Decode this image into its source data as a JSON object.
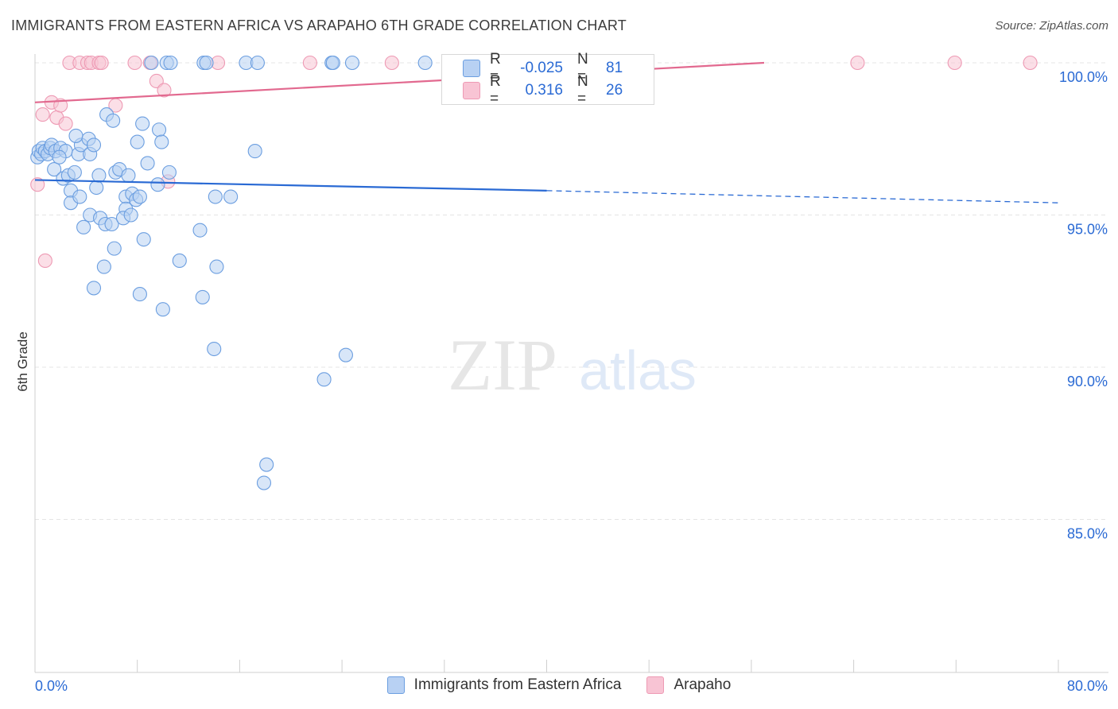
{
  "header": {
    "title": "IMMIGRANTS FROM EASTERN AFRICA VS ARAPAHO 6TH GRADE CORRELATION CHART",
    "source": "Source: ZipAtlas.com"
  },
  "watermark": {
    "zip": "ZIP",
    "atlas": "atlas"
  },
  "colors": {
    "blue_fill": "#b8d1f3",
    "blue_stroke": "#6b9ee0",
    "blue_line": "#2a6ad4",
    "pink_fill": "#f8c4d4",
    "pink_stroke": "#ee9ab4",
    "pink_line": "#e2698f",
    "value_text": "#2a6ad4"
  },
  "legend": {
    "rows": [
      {
        "label": "R =",
        "r": "-0.025",
        "n_label": "N =",
        "n": "81"
      },
      {
        "label": "R =",
        "r": "0.316",
        "n_label": "N =",
        "n": "26"
      }
    ]
  },
  "bottom_legend": {
    "series1": "Immigrants from Eastern Africa",
    "series2": "Arapaho"
  },
  "chart_data": {
    "type": "scatter",
    "title": "IMMIGRANTS FROM EASTERN AFRICA VS ARAPAHO 6TH GRADE CORRELATION CHART",
    "xlabel": "",
    "ylabel": "6th Grade",
    "xlim": [
      0,
      80
    ],
    "ylim": [
      80,
      100.4
    ],
    "x_tick_labels": [
      "0.0%",
      "80.0%"
    ],
    "y_ticks": [
      {
        "value": 100,
        "label": "100.0%"
      },
      {
        "value": 95,
        "label": "95.0%"
      },
      {
        "value": 90,
        "label": "90.0%"
      },
      {
        "value": 85,
        "label": "85.0%"
      }
    ],
    "series": [
      {
        "name": "Immigrants from Eastern Africa",
        "color": "blue",
        "r": -0.025,
        "n": 81,
        "trend": {
          "x0": 0,
          "y0": 96.15,
          "x_solid_end": 40,
          "y_solid_end": 95.8,
          "x1": 80,
          "y1": 95.4
        },
        "points": [
          [
            0.2,
            96.9
          ],
          [
            0.3,
            97.1
          ],
          [
            0.5,
            97.0
          ],
          [
            0.6,
            97.2
          ],
          [
            0.8,
            97.1
          ],
          [
            1.0,
            97.0
          ],
          [
            1.2,
            97.2
          ],
          [
            1.3,
            97.3
          ],
          [
            1.6,
            97.1
          ],
          [
            2.0,
            97.2
          ],
          [
            2.4,
            97.1
          ],
          [
            1.5,
            96.5
          ],
          [
            1.9,
            96.9
          ],
          [
            2.2,
            96.2
          ],
          [
            2.6,
            96.3
          ],
          [
            2.8,
            95.8
          ],
          [
            3.1,
            96.4
          ],
          [
            3.4,
            97.0
          ],
          [
            3.6,
            97.3
          ],
          [
            3.2,
            97.6
          ],
          [
            4.2,
            97.5
          ],
          [
            4.3,
            97.0
          ],
          [
            4.6,
            97.3
          ],
          [
            2.8,
            95.4
          ],
          [
            3.5,
            95.6
          ],
          [
            3.8,
            94.6
          ],
          [
            4.3,
            95.0
          ],
          [
            4.8,
            95.9
          ],
          [
            5.0,
            96.3
          ],
          [
            5.1,
            94.9
          ],
          [
            5.5,
            94.7
          ],
          [
            5.6,
            98.3
          ],
          [
            6.0,
            94.7
          ],
          [
            6.1,
            98.1
          ],
          [
            6.3,
            96.4
          ],
          [
            6.6,
            96.5
          ],
          [
            7.1,
            95.6
          ],
          [
            7.1,
            95.2
          ],
          [
            7.3,
            96.3
          ],
          [
            6.9,
            94.9
          ],
          [
            7.5,
            95.0
          ],
          [
            7.6,
            95.7
          ],
          [
            7.9,
            95.5
          ],
          [
            8.0,
            97.4
          ],
          [
            8.2,
            95.6
          ],
          [
            8.4,
            98.0
          ],
          [
            8.5,
            94.2
          ],
          [
            8.8,
            96.7
          ],
          [
            9.6,
            96.0
          ],
          [
            9.7,
            97.8
          ],
          [
            9.9,
            97.4
          ],
          [
            10.5,
            96.4
          ],
          [
            5.4,
            93.3
          ],
          [
            6.2,
            93.9
          ],
          [
            4.6,
            92.6
          ],
          [
            8.2,
            92.4
          ],
          [
            10.0,
            91.9
          ],
          [
            11.3,
            93.5
          ],
          [
            12.9,
            94.5
          ],
          [
            13.1,
            92.3
          ],
          [
            14.1,
            95.6
          ],
          [
            14.2,
            93.3
          ],
          [
            15.3,
            95.6
          ],
          [
            17.2,
            97.1
          ],
          [
            14.0,
            90.6
          ],
          [
            24.3,
            90.4
          ],
          [
            22.6,
            89.6
          ],
          [
            18.1,
            86.8
          ],
          [
            17.9,
            86.2
          ],
          [
            9.1,
            100.0
          ],
          [
            10.3,
            100.0
          ],
          [
            10.6,
            100.0
          ],
          [
            13.2,
            100.0
          ],
          [
            13.4,
            100.0
          ],
          [
            16.5,
            100.0
          ],
          [
            17.4,
            100.0
          ],
          [
            23.2,
            100.0
          ],
          [
            23.3,
            100.0
          ],
          [
            24.8,
            100.0
          ],
          [
            30.5,
            100.0
          ],
          [
            33.0,
            100.0
          ]
        ]
      },
      {
        "name": "Arapaho",
        "color": "pink",
        "r": 0.316,
        "n": 26,
        "trend": {
          "x0": 0,
          "y0": 98.7,
          "x1": 57,
          "y1": 100.0
        },
        "points": [
          [
            0.2,
            96.0
          ],
          [
            0.8,
            93.5
          ],
          [
            0.6,
            98.3
          ],
          [
            1.3,
            98.7
          ],
          [
            1.7,
            98.2
          ],
          [
            2.0,
            98.6
          ],
          [
            2.4,
            98.0
          ],
          [
            6.3,
            98.6
          ],
          [
            9.5,
            99.4
          ],
          [
            10.1,
            99.1
          ],
          [
            10.4,
            96.1
          ],
          [
            2.7,
            100.0
          ],
          [
            3.5,
            100.0
          ],
          [
            4.1,
            100.0
          ],
          [
            4.4,
            100.0
          ],
          [
            5.0,
            100.0
          ],
          [
            5.2,
            100.0
          ],
          [
            7.8,
            100.0
          ],
          [
            9.0,
            100.0
          ],
          [
            14.3,
            100.0
          ],
          [
            21.5,
            100.0
          ],
          [
            27.9,
            100.0
          ],
          [
            33.8,
            100.0
          ],
          [
            64.3,
            100.0
          ],
          [
            71.9,
            100.0
          ],
          [
            77.8,
            100.0
          ]
        ]
      }
    ]
  }
}
